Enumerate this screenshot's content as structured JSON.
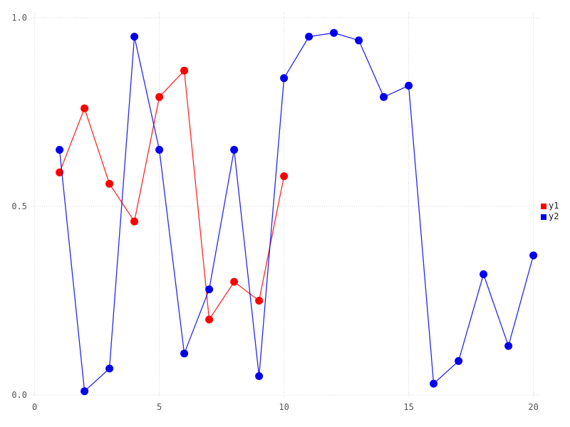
{
  "chart_data": {
    "type": "line",
    "title": "",
    "xlabel": "",
    "ylabel": "",
    "xlim": [
      -0.15,
      20.6
    ],
    "ylim": [
      0.0,
      1.0
    ],
    "grid": "dotted",
    "grid_color": "#d4d4dc",
    "tick_label_color": "#555555",
    "legend_position": "right-outside",
    "marker": "circle",
    "x_ticks": [
      0,
      5,
      10,
      15,
      20
    ],
    "x_tick_labels": [
      "0",
      "5",
      "10",
      "15",
      "20"
    ],
    "y_ticks": [
      0.0,
      0.5,
      1.0
    ],
    "y_tick_labels": [
      "0.0",
      "0.5",
      "1.0"
    ],
    "series": [
      {
        "name": "y1",
        "color": "#ff0000",
        "x": [
          1,
          2,
          3,
          4,
          5,
          6,
          7,
          8,
          9,
          10
        ],
        "y": [
          0.59,
          0.76,
          0.56,
          0.46,
          0.79,
          0.86,
          0.2,
          0.3,
          0.25,
          0.58
        ]
      },
      {
        "name": "y2",
        "color": "#0000ee",
        "x": [
          1,
          2,
          3,
          4,
          5,
          6,
          7,
          8,
          9,
          10,
          11,
          12,
          13,
          14,
          15,
          16,
          17,
          18,
          19,
          20
        ],
        "y": [
          0.65,
          0.01,
          0.07,
          0.95,
          0.65,
          0.11,
          0.28,
          0.65,
          0.05,
          0.84,
          0.95,
          0.96,
          0.94,
          0.79,
          0.82,
          0.03,
          0.09,
          0.32,
          0.13,
          0.37
        ]
      }
    ]
  }
}
